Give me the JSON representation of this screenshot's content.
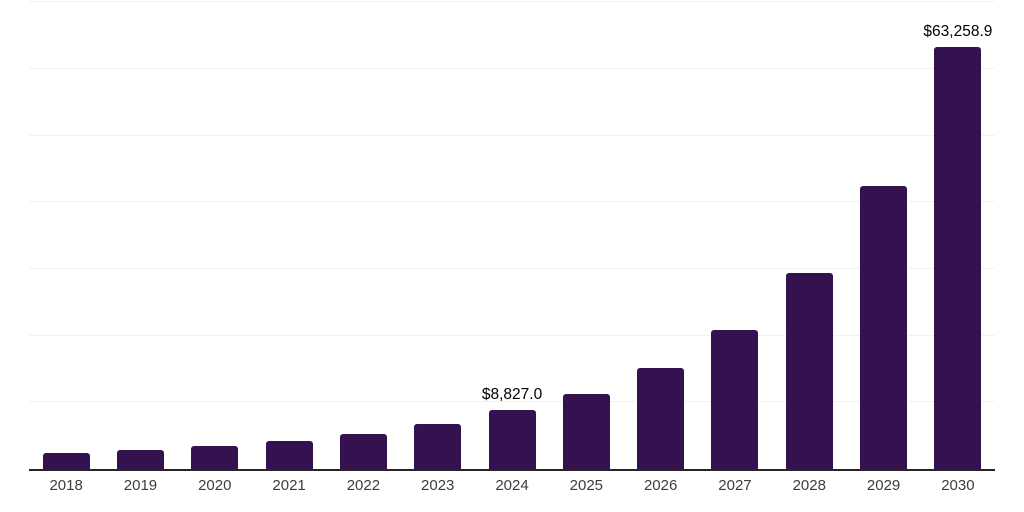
{
  "chart_data": {
    "type": "bar",
    "categories": [
      "2018",
      "2019",
      "2020",
      "2021",
      "2022",
      "2023",
      "2024",
      "2025",
      "2026",
      "2027",
      "2028",
      "2029",
      "2030"
    ],
    "values": [
      2450,
      2900,
      3500,
      4200,
      5300,
      6700,
      8827.0,
      11300,
      15200,
      20900,
      29400,
      42500,
      63258.9
    ],
    "data_labels": [
      "",
      "",
      "",
      "",
      "",
      "",
      "$8,827.0",
      "",
      "",
      "",
      "",
      "",
      "$63,258.9"
    ],
    "title": "",
    "xlabel": "",
    "ylabel": "",
    "ylim": [
      0,
      70000
    ],
    "gridline_step": 10000,
    "grid": "on",
    "legend": "none",
    "colors": {
      "bar": "#34114F",
      "gridline": "#f2f2f2",
      "axis_line": "#262626",
      "tick_label": "#3d3d3d",
      "data_label": "#000000"
    }
  }
}
